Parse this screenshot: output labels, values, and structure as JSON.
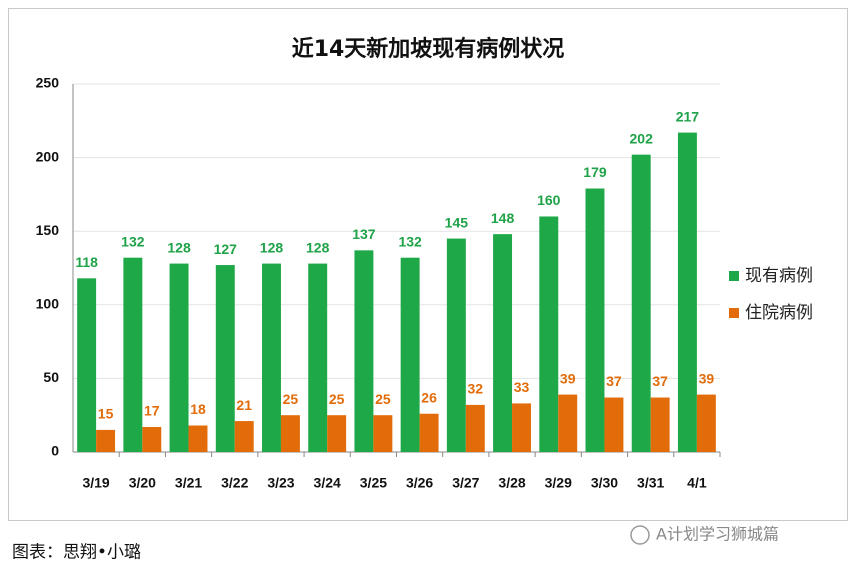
{
  "chart_data": {
    "type": "bar",
    "title": "近14天新加坡现有病例状况",
    "categories": [
      "3/19",
      "3/20",
      "3/21",
      "3/22",
      "3/23",
      "3/24",
      "3/25",
      "3/26",
      "3/27",
      "3/28",
      "3/29",
      "3/30",
      "3/31",
      "4/1"
    ],
    "series": [
      {
        "name": "现有病例",
        "color": "#1fa847",
        "label_color": "#20a248",
        "values": [
          118,
          132,
          128,
          127,
          128,
          128,
          137,
          132,
          145,
          148,
          160,
          179,
          202,
          217
        ]
      },
      {
        "name": "住院病例",
        "color": "#e36c0a",
        "label_color": "#e36c0a",
        "values": [
          15,
          17,
          18,
          21,
          25,
          25,
          25,
          26,
          32,
          33,
          39,
          37,
          37,
          39
        ]
      }
    ],
    "ylim": [
      0,
      250
    ],
    "yticks": [
      0,
      50,
      100,
      150,
      200,
      250
    ],
    "grid": true,
    "legend": "right"
  },
  "caption": "图表：思翔•小璐",
  "watermark": "A计划学习狮城篇"
}
